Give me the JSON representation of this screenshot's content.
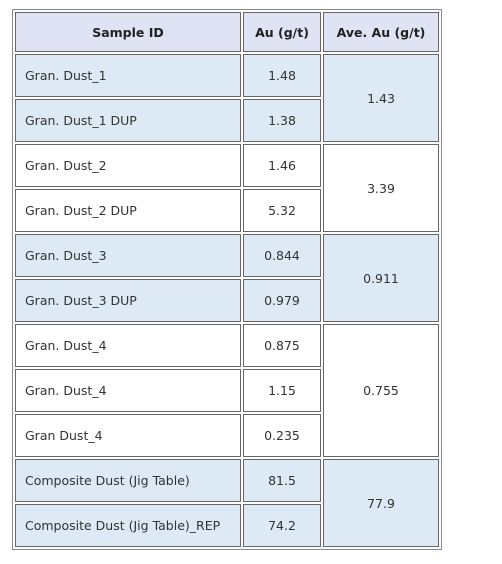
{
  "table": {
    "header": [
      "Sample ID",
      "Au (g/t)",
      "Ave. Au (g/t)"
    ],
    "groups": [
      {
        "rows": [
          [
            "Gran. Dust_1",
            "1.48"
          ],
          [
            "Gran. Dust_1 DUP",
            "1.38"
          ]
        ],
        "average": "1.43"
      },
      {
        "rows": [
          [
            "Gran. Dust_2",
            "1.46"
          ],
          [
            "Gran. Dust_2 DUP",
            "5.32"
          ]
        ],
        "average": "3.39"
      },
      {
        "rows": [
          [
            "Gran. Dust_3",
            "0.844"
          ],
          [
            "Gran. Dust_3 DUP",
            "0.979"
          ]
        ],
        "average": "0.911"
      },
      {
        "rows": [
          [
            "Gran. Dust_4",
            "0.875"
          ],
          [
            "Gran. Dust_4",
            "1.15"
          ],
          [
            "Gran Dust_4",
            "0.235"
          ]
        ],
        "average": "0.755"
      },
      {
        "rows": [
          [
            "Composite Dust (Jig Table)",
            "81.5"
          ],
          [
            "Composite Dust (Jig Table)_REP",
            "74.2"
          ]
        ],
        "average": "77.9"
      }
    ]
  }
}
